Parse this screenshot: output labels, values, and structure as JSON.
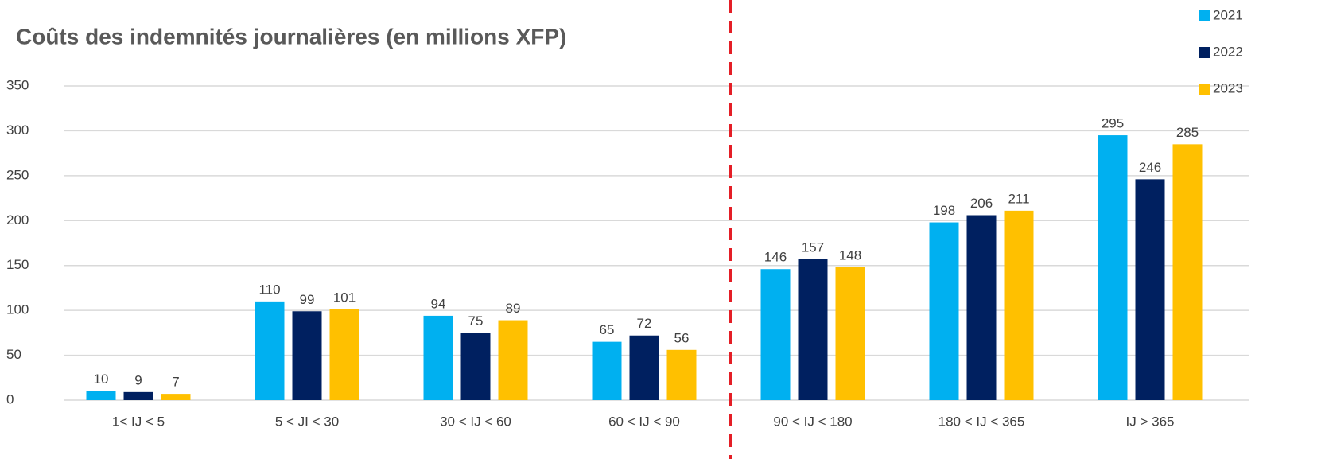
{
  "chart_data": {
    "type": "bar",
    "title": "Coûts des indemnités journalières (en millions XFP)",
    "categories": [
      "1< IJ < 5",
      "5 < JI < 30",
      "30 < IJ < 60",
      "60 < IJ < 90",
      "90 < IJ < 180",
      "180 < IJ < 365",
      "IJ > 365"
    ],
    "series": [
      {
        "name": "2021",
        "color": "#00b0f0",
        "values": [
          10,
          110,
          94,
          65,
          146,
          198,
          295
        ]
      },
      {
        "name": "2022",
        "color": "#002060",
        "values": [
          9,
          99,
          75,
          72,
          157,
          206,
          246
        ]
      },
      {
        "name": "2023",
        "color": "#ffc000",
        "values": [
          7,
          101,
          89,
          56,
          148,
          211,
          285
        ]
      }
    ],
    "ylim": [
      0,
      350
    ],
    "yticks": [
      0,
      50,
      100,
      150,
      200,
      250,
      300,
      350
    ],
    "grid": true,
    "legend": "top-right"
  }
}
